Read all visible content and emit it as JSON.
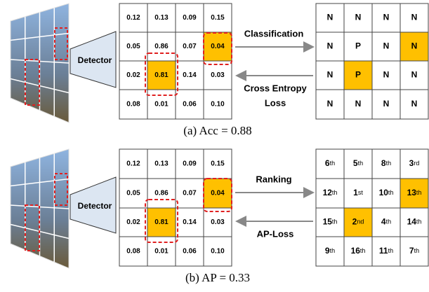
{
  "panels": [
    {
      "detector": "Detector",
      "scores": [
        [
          "0.12",
          "0.13",
          "0.09",
          "0.15"
        ],
        [
          "0.05",
          "0.86",
          "0.07",
          "0.04"
        ],
        [
          "0.02",
          "0.81",
          "0.14",
          "0.03"
        ],
        [
          "0.08",
          "0.01",
          "0.06",
          "0.10"
        ]
      ],
      "forward": "Classification",
      "backward": [
        "Cross Entropy",
        "Loss"
      ],
      "outputs": [
        [
          [
            "N"
          ],
          [
            "N"
          ],
          [
            "N"
          ],
          [
            "N"
          ]
        ],
        [
          [
            "N"
          ],
          [
            "P"
          ],
          [
            "N"
          ],
          [
            "N"
          ]
        ],
        [
          [
            "N"
          ],
          [
            "P"
          ],
          [
            "N"
          ],
          [
            "N"
          ]
        ],
        [
          [
            "N"
          ],
          [
            "N"
          ],
          [
            "N"
          ],
          [
            "N"
          ]
        ]
      ],
      "caption": "(a) Acc = 0.88"
    },
    {
      "detector": "Detector",
      "scores": [
        [
          "0.12",
          "0.13",
          "0.09",
          "0.15"
        ],
        [
          "0.05",
          "0.86",
          "0.07",
          "0.04"
        ],
        [
          "0.02",
          "0.81",
          "0.14",
          "0.03"
        ],
        [
          "0.08",
          "0.01",
          "0.06",
          "0.10"
        ]
      ],
      "forward": "Ranking",
      "backward": [
        "AP-Loss"
      ],
      "outputs": [
        [
          [
            "6",
            "th"
          ],
          [
            "5",
            "th"
          ],
          [
            "8",
            "th"
          ],
          [
            "3",
            "rd"
          ]
        ],
        [
          [
            "12",
            "th"
          ],
          [
            "1",
            "st"
          ],
          [
            "10",
            "th"
          ],
          [
            "13",
            "th"
          ]
        ],
        [
          [
            "15",
            "th"
          ],
          [
            "2",
            "nd"
          ],
          [
            "4",
            "th"
          ],
          [
            "14",
            "th"
          ]
        ],
        [
          [
            "9",
            "th"
          ],
          [
            "16",
            "th"
          ],
          [
            "11",
            "th"
          ],
          [
            "7",
            "th"
          ]
        ]
      ],
      "caption": "(b) AP = 0.33"
    }
  ]
}
